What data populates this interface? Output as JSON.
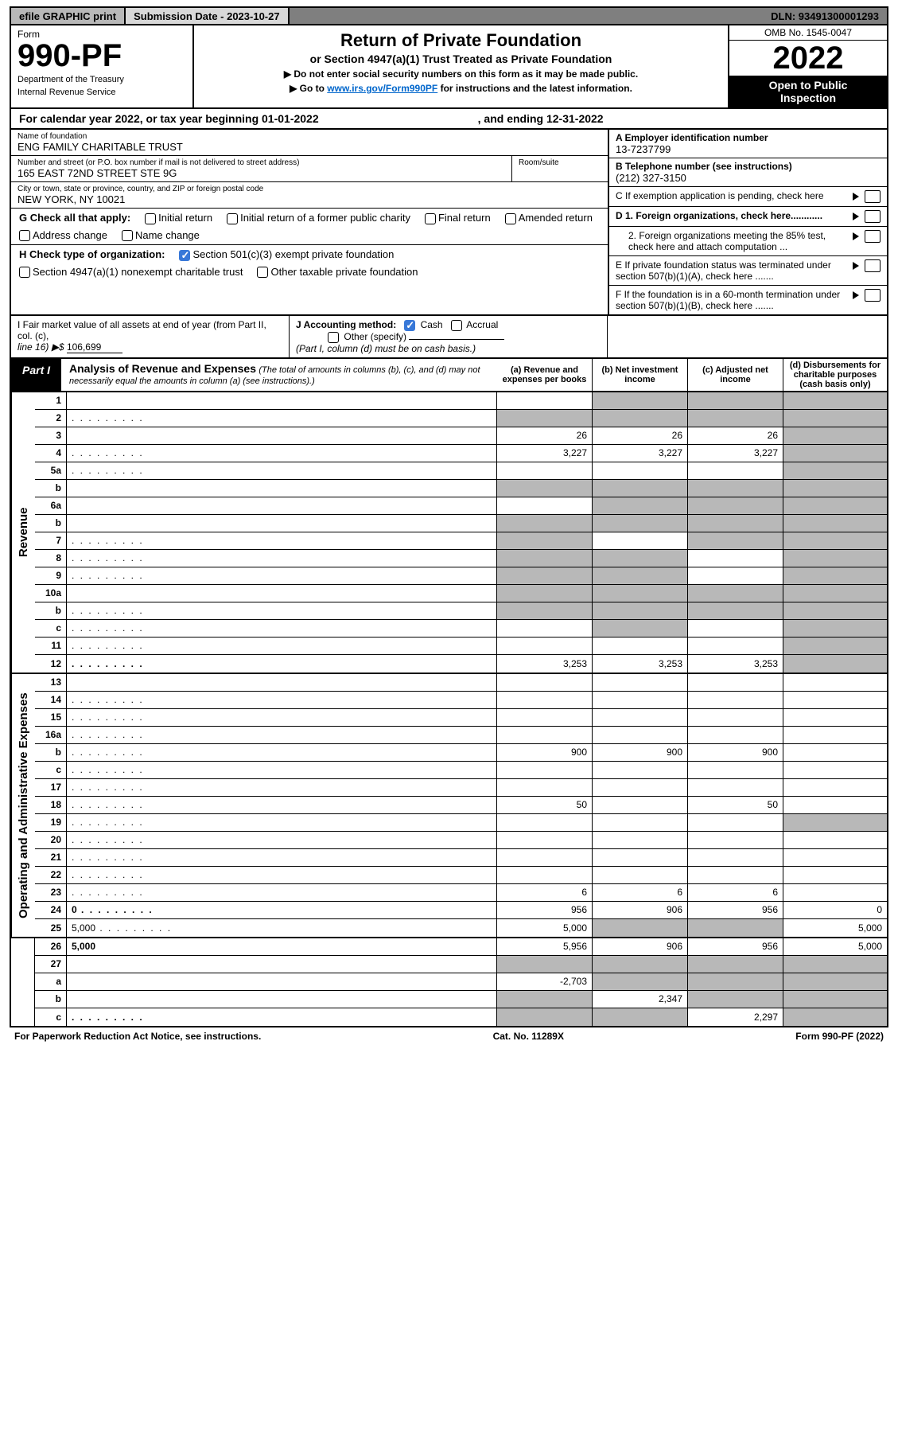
{
  "topbar": {
    "efile": "efile GRAPHIC print",
    "submission_label": "Submission Date - 2023-10-27",
    "dln": "DLN: 93491300001293"
  },
  "header": {
    "form_word": "Form",
    "form_number": "990-PF",
    "dept": "Department of the Treasury",
    "irs": "Internal Revenue Service",
    "title": "Return of Private Foundation",
    "subtitle": "or Section 4947(a)(1) Trust Treated as Private Foundation",
    "instr1": "▶ Do not enter social security numbers on this form as it may be made public.",
    "instr2_pre": "▶ Go to ",
    "instr2_link": "www.irs.gov/Form990PF",
    "instr2_post": " for instructions and the latest information.",
    "omb": "OMB No. 1545-0047",
    "year": "2022",
    "open1": "Open to Public",
    "open2": "Inspection"
  },
  "calendar": {
    "text": "For calendar year 2022, or tax year beginning 01-01-2022",
    "ending": ", and ending 12-31-2022"
  },
  "entity": {
    "name_lbl": "Name of foundation",
    "name": "ENG FAMILY CHARITABLE TRUST",
    "addr_lbl": "Number and street (or P.O. box number if mail is not delivered to street address)",
    "addr": "165 EAST 72ND STREET STE 9G",
    "room_lbl": "Room/suite",
    "city_lbl": "City or town, state or province, country, and ZIP or foreign postal code",
    "city": "NEW YORK, NY  10021",
    "ein_lbl": "A Employer identification number",
    "ein": "13-7237799",
    "phone_lbl": "B Telephone number (see instructions)",
    "phone": "(212) 327-3150",
    "pending_lbl": "C If exemption application is pending, check here"
  },
  "checks": {
    "g_label": "G Check all that apply:",
    "g1": "Initial return",
    "g2": "Initial return of a former public charity",
    "g3": "Final return",
    "g4": "Amended return",
    "g5": "Address change",
    "g6": "Name change",
    "h_label": "H Check type of organization:",
    "h1": "Section 501(c)(3) exempt private foundation",
    "h2": "Section 4947(a)(1) nonexempt charitable trust",
    "h3": "Other taxable private foundation",
    "d1": "D 1. Foreign organizations, check here............",
    "d2": "2. Foreign organizations meeting the 85% test, check here and attach computation ...",
    "e": "E  If private foundation status was terminated under section 507(b)(1)(A), check here .......",
    "f": "F  If the foundation is in a 60-month termination under section 507(b)(1)(B), check here ......."
  },
  "ij": {
    "i_lbl": "I Fair market value of all assets at end of year (from Part II, col. (c),",
    "i_line": "line 16) ▶$",
    "i_val": "106,699",
    "j_lbl": "J Accounting method:",
    "j1": "Cash",
    "j2": "Accrual",
    "j3": "Other (specify)",
    "j_note": "(Part I, column (d) must be on cash basis.)"
  },
  "part1": {
    "badge": "Part I",
    "title": "Analysis of Revenue and Expenses",
    "note": "(The total of amounts in columns (b), (c), and (d) may not necessarily equal the amounts in column (a) (see instructions).)",
    "col_a": "(a)   Revenue and expenses per books",
    "col_b": "(b)   Net investment income",
    "col_c": "(c)   Adjusted net income",
    "col_d": "(d)   Disbursements for charitable purposes (cash basis only)"
  },
  "vlabels": {
    "rev": "Revenue",
    "exp": "Operating and Administrative Expenses"
  },
  "rows": [
    {
      "n": "1",
      "d": "",
      "a": "",
      "b": "",
      "c": "",
      "sb": true,
      "sc": true,
      "sd": true
    },
    {
      "n": "2",
      "d": "",
      "dots": true,
      "a": "",
      "b": "",
      "c": "",
      "sb": true,
      "sc": true,
      "sd": true,
      "sa": true
    },
    {
      "n": "3",
      "d": "",
      "a": "26",
      "b": "26",
      "c": "26",
      "sd": true
    },
    {
      "n": "4",
      "d": "",
      "dots": true,
      "a": "3,227",
      "b": "3,227",
      "c": "3,227",
      "sd": true
    },
    {
      "n": "5a",
      "d": "",
      "dots": true,
      "a": "",
      "b": "",
      "c": "",
      "sd": true
    },
    {
      "n": "b",
      "d": "",
      "a": "",
      "b": "",
      "c": "",
      "sa": true,
      "sb": true,
      "sc": true,
      "sd": true
    },
    {
      "n": "6a",
      "d": "",
      "a": "",
      "b": "",
      "c": "",
      "sb": true,
      "sc": true,
      "sd": true
    },
    {
      "n": "b",
      "d": "",
      "a": "",
      "b": "",
      "c": "",
      "sa": true,
      "sb": true,
      "sc": true,
      "sd": true
    },
    {
      "n": "7",
      "d": "",
      "dots": true,
      "a": "",
      "b": "",
      "c": "",
      "sa": true,
      "sc": true,
      "sd": true
    },
    {
      "n": "8",
      "d": "",
      "dots": true,
      "a": "",
      "b": "",
      "c": "",
      "sa": true,
      "sb": true,
      "sd": true
    },
    {
      "n": "9",
      "d": "",
      "dots": true,
      "a": "",
      "b": "",
      "c": "",
      "sa": true,
      "sb": true,
      "sd": true
    },
    {
      "n": "10a",
      "d": "",
      "a": "",
      "b": "",
      "c": "",
      "sa": true,
      "sb": true,
      "sc": true,
      "sd": true
    },
    {
      "n": "b",
      "d": "",
      "dots": true,
      "a": "",
      "b": "",
      "c": "",
      "sa": true,
      "sb": true,
      "sc": true,
      "sd": true
    },
    {
      "n": "c",
      "d": "",
      "dots": true,
      "a": "",
      "b": "",
      "c": "",
      "sb": true,
      "sd": true
    },
    {
      "n": "11",
      "d": "",
      "dots": true,
      "a": "",
      "b": "",
      "c": "",
      "sd": true
    },
    {
      "n": "12",
      "d": "",
      "dots": true,
      "bold": true,
      "a": "3,253",
      "b": "3,253",
      "c": "3,253",
      "sd": true
    },
    {
      "n": "13",
      "d": "",
      "a": "",
      "b": "",
      "c": ""
    },
    {
      "n": "14",
      "d": "",
      "dots": true,
      "a": "",
      "b": "",
      "c": ""
    },
    {
      "n": "15",
      "d": "",
      "dots": true,
      "a": "",
      "b": "",
      "c": ""
    },
    {
      "n": "16a",
      "d": "",
      "dots": true,
      "a": "",
      "b": "",
      "c": ""
    },
    {
      "n": "b",
      "d": "",
      "dots": true,
      "a": "900",
      "b": "900",
      "c": "900"
    },
    {
      "n": "c",
      "d": "",
      "dots": true,
      "a": "",
      "b": "",
      "c": ""
    },
    {
      "n": "17",
      "d": "",
      "dots": true,
      "a": "",
      "b": "",
      "c": ""
    },
    {
      "n": "18",
      "d": "",
      "dots": true,
      "a": "50",
      "b": "",
      "c": "50"
    },
    {
      "n": "19",
      "d": "",
      "dots": true,
      "a": "",
      "b": "",
      "c": "",
      "sd": true
    },
    {
      "n": "20",
      "d": "",
      "dots": true,
      "a": "",
      "b": "",
      "c": ""
    },
    {
      "n": "21",
      "d": "",
      "dots": true,
      "a": "",
      "b": "",
      "c": ""
    },
    {
      "n": "22",
      "d": "",
      "dots": true,
      "a": "",
      "b": "",
      "c": ""
    },
    {
      "n": "23",
      "d": "",
      "dots": true,
      "a": "6",
      "b": "6",
      "c": "6"
    },
    {
      "n": "24",
      "d": "0",
      "dots": true,
      "bold": true,
      "a": "956",
      "b": "906",
      "c": "956"
    },
    {
      "n": "25",
      "d": "5,000",
      "dots": true,
      "a": "5,000",
      "b": "",
      "c": "",
      "sb": true,
      "sc": true
    },
    {
      "n": "26",
      "d": "5,000",
      "bold": true,
      "a": "5,956",
      "b": "906",
      "c": "956"
    },
    {
      "n": "27",
      "d": "",
      "a": "",
      "b": "",
      "c": "",
      "sa": true,
      "sb": true,
      "sc": true,
      "sd": true
    },
    {
      "n": "a",
      "d": "",
      "bold": true,
      "a": "-2,703",
      "b": "",
      "c": "",
      "sb": true,
      "sc": true,
      "sd": true
    },
    {
      "n": "b",
      "d": "",
      "bold": true,
      "a": "",
      "b": "2,347",
      "c": "",
      "sa": true,
      "sc": true,
      "sd": true
    },
    {
      "n": "c",
      "d": "",
      "dots": true,
      "bold": true,
      "a": "",
      "b": "",
      "c": "2,297",
      "sa": true,
      "sb": true,
      "sd": true
    }
  ],
  "footer": {
    "left": "For Paperwork Reduction Act Notice, see instructions.",
    "mid": "Cat. No. 11289X",
    "right": "Form 990-PF (2022)"
  },
  "colors": {
    "bg": "#ffffff",
    "topbar_bg": "#7f7f7f",
    "graphic_bg": "#b8b8b8",
    "subdate_bg": "#d8d8d8",
    "black": "#000000",
    "link": "#0066cc",
    "check_blue": "#3878d8",
    "shade": "#b8b8b8"
  }
}
